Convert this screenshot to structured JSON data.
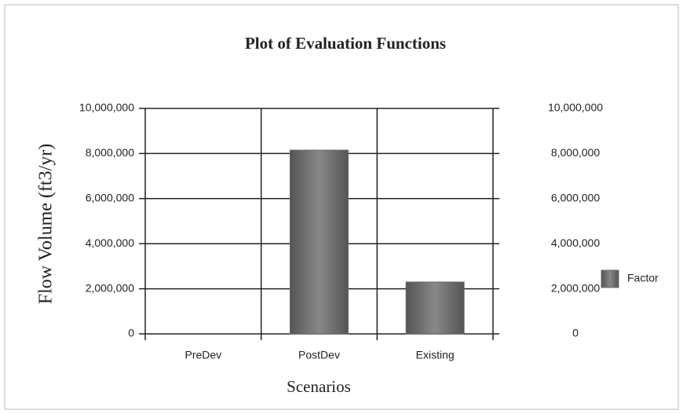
{
  "chart_data": {
    "type": "bar",
    "title": "Plot of Evaluation Functions",
    "ylabel": "Flow Volume (ft3/yr)",
    "xlabel": "Scenarios",
    "categories": [
      "PreDev",
      "PostDev",
      "Existing"
    ],
    "series": [
      {
        "name": "Factor",
        "color": "#6a6a6a",
        "values": [
          0,
          8150000,
          2300000
        ]
      }
    ],
    "ylim": [
      0,
      10000000
    ],
    "yticks": [
      0,
      {
        "value": 2000000,
        "label": "2,000,000"
      },
      {
        "value": 4000000,
        "label": "4,000,000"
      },
      {
        "value": 6000000,
        "label": "6,000,000"
      },
      {
        "value": 8000000,
        "label": "8,000,000"
      },
      {
        "value": 10000000,
        "label": "10,000,000"
      }
    ],
    "y2lim": [
      0,
      10000000
    ],
    "y2ticks": [
      0,
      {
        "value": 2000000,
        "label": "2,000,000"
      },
      {
        "value": 4000000,
        "label": "4,000,000"
      },
      {
        "value": 6000000,
        "label": "6,000,000"
      },
      {
        "value": 8000000,
        "label": "8,000,000"
      },
      {
        "value": 10000000,
        "label": "10,000,000"
      }
    ],
    "grid": true,
    "legend": "right"
  }
}
